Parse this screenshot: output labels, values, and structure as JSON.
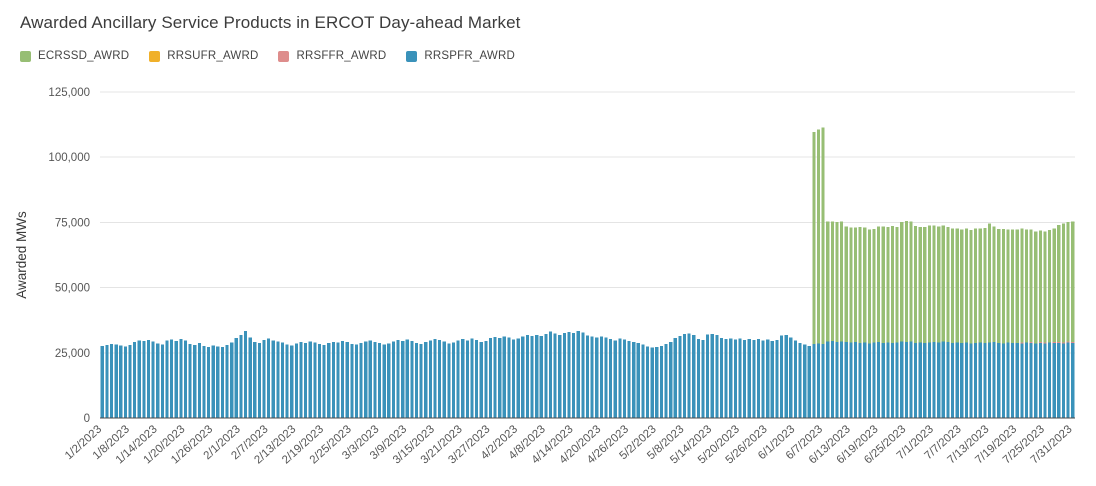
{
  "header": {
    "title": "Awarded Ancillary Service Products in ERCOT Day-ahead Market"
  },
  "legend": {
    "position": "top",
    "items": [
      {
        "label": "ECRSSD_AWRD",
        "color": "#97BE74"
      },
      {
        "label": "RRSUFR_AWRD",
        "color": "#F0B02A"
      },
      {
        "label": "RRSFFR_AWRD",
        "color": "#DE8D8C"
      },
      {
        "label": "RRSPFR_AWRD",
        "color": "#3A92BA"
      }
    ]
  },
  "chart_data": {
    "type": "bar",
    "stacked": true,
    "title": "Awarded Ancillary Service Products in ERCOT Day-ahead Market",
    "xlabel": "",
    "ylabel": "Awarded MWs",
    "ylim": [
      0,
      125000
    ],
    "grid": true,
    "legend_position": "top",
    "start_date": "1/2/2023",
    "end_date": "7/31/2023",
    "num_days": 211,
    "x_tick_every": 6,
    "x_tick_labels": [
      "1/2/2023",
      "1/8/2023",
      "1/14/2023",
      "1/20/2023",
      "1/26/2023",
      "2/1/2023",
      "2/7/2023",
      "2/13/2023",
      "2/19/2023",
      "2/25/2023",
      "3/3/2023",
      "3/9/2023",
      "3/15/2023",
      "3/21/2023",
      "3/27/2023",
      "4/2/2023",
      "4/8/2023",
      "4/14/2023",
      "4/20/2023",
      "4/26/2023",
      "5/2/2023",
      "5/8/2023",
      "5/14/2023",
      "5/20/2023",
      "5/26/2023",
      "6/1/2023",
      "6/7/2023",
      "6/13/2023",
      "6/19/2023",
      "6/25/2023",
      "7/1/2023",
      "7/7/2023",
      "7/13/2023",
      "7/19/2023",
      "7/25/2023",
      "7/31/2023"
    ],
    "y_tick_values": [
      0,
      25000,
      50000,
      75000,
      100000,
      125000
    ],
    "y_tick_labels": [
      "0",
      "25,000",
      "50,000",
      "75,000",
      "100,000",
      "125,000"
    ],
    "series": [
      {
        "name": "RRSPFR_AWRD",
        "color": "#3A92BA",
        "offset": 0,
        "values": [
          27600,
          27900,
          28300,
          28100,
          27800,
          27500,
          27900,
          29200,
          29800,
          29500,
          29900,
          29400,
          28600,
          28200,
          29700,
          30100,
          29600,
          30200,
          29800,
          28400,
          28000,
          28800,
          27600,
          27300,
          27800,
          27500,
          27200,
          27900,
          28900,
          30600,
          31800,
          33400,
          30900,
          29200,
          28700,
          29900,
          30400,
          29800,
          29300,
          28900,
          28100,
          27800,
          28600,
          29100,
          28800,
          29400,
          29000,
          28300,
          28000,
          28700,
          29200,
          28900,
          29500,
          29100,
          28400,
          28100,
          28800,
          29300,
          29700,
          29200,
          28800,
          28200,
          28500,
          29400,
          29900,
          29500,
          30100,
          29600,
          28700,
          28300,
          29200,
          29800,
          30300,
          29900,
          29400,
          28600,
          28900,
          29700,
          30200,
          29800,
          30400,
          29900,
          29100,
          29500,
          30600,
          31100,
          30700,
          31200,
          30800,
          30100,
          30400,
          31300,
          31800,
          31400,
          31900,
          31500,
          32200,
          33200,
          32400,
          31900,
          32600,
          33000,
          32500,
          33400,
          32800,
          31700,
          31200,
          30800,
          31300,
          30900,
          30200,
          29800,
          30500,
          30100,
          29600,
          29200,
          28800,
          28100,
          27400,
          27000,
          27300,
          27700,
          28400,
          29100,
          30600,
          31400,
          32200,
          32400,
          31900,
          30300,
          30000,
          32100,
          32300,
          31800,
          30600,
          30200,
          30500,
          30100,
          30400,
          30000,
          30300,
          29900,
          30200,
          29800,
          30100,
          29600,
          29900,
          31600,
          31900,
          30800,
          29800,
          28700,
          28100,
          27600,
          28300,
          28600,
          28400,
          29300,
          29500,
          29100,
          29400,
          29200,
          28900,
          29100,
          28800,
          29000,
          28600,
          28900,
          29200,
          28800,
          29000,
          28700,
          28900,
          29300,
          29100,
          29400,
          28800,
          29000,
          28700,
          28900,
          29200,
          29000,
          29300,
          29100,
          28800,
          29000,
          28700,
          28900,
          28600,
          28800,
          29000,
          28700,
          28900,
          29100,
          28800,
          28600,
          28900,
          28700,
          28800,
          28600,
          28900,
          28700,
          28500,
          28800,
          28600,
          28900,
          28700,
          28800,
          28600,
          28900,
          28700
        ]
      },
      {
        "name": "RRSFFR_AWRD",
        "color": "#DE8D8C",
        "offset": 199,
        "values": [
          400,
          0,
          400,
          0,
          400,
          400,
          0,
          400,
          400,
          400,
          400,
          400
        ]
      },
      {
        "name": "RRSUFR_AWRD",
        "color": "#F0B02A",
        "offset": 0,
        "values": []
      },
      {
        "name": "ECRSSD_AWRD",
        "color": "#97BE74",
        "offset": 154,
        "values": [
          81400,
          82000,
          82900,
          46000,
          45800,
          46100,
          45900,
          44300,
          44200,
          44000,
          44400,
          44100,
          43700,
          43500,
          44300,
          44600,
          44200,
          45000,
          44400,
          45900,
          46400,
          46000,
          44800,
          44300,
          44600,
          44900,
          44700,
          44400,
          44600,
          44100,
          43900,
          43700,
          43600,
          43800,
          43500,
          43900,
          43600,
          44200,
          45600,
          44300,
          43700,
          43900,
          43400,
          43600,
          43500,
          43700,
          43300,
          43200,
          43000,
          42700,
          42500,
          43100,
          43500,
          44800,
          45600,
          45900,
          46300
        ]
      }
    ]
  },
  "style": {
    "grid_color": "#e4e4e4",
    "baseline_color": "#4a4a4a",
    "tick_label_color": "#565656",
    "axis_title_color": "#3a3a3a"
  }
}
